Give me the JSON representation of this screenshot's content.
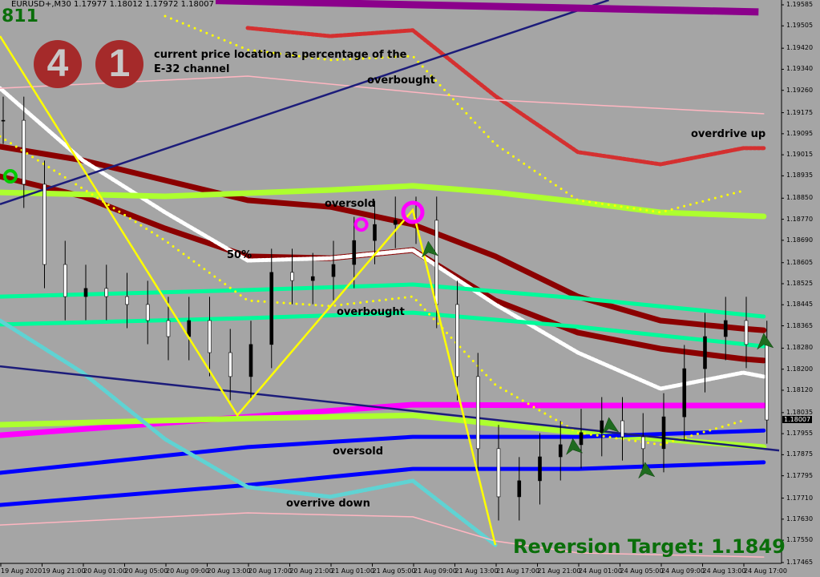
{
  "header": {
    "symbol_line": "EURUSD+,M30  1.17977 1.18012 1.17972 1.18007",
    "counter": "811"
  },
  "info": {
    "digit_1": "4",
    "digit_2": "1",
    "description_1": "current price location as percentage of the",
    "description_2": "E-32 channel"
  },
  "annotations": {
    "overbought_top": "overbought",
    "overdrive_up": "overdrive up",
    "oversold_top": "oversold",
    "fifty_percent": "50%",
    "overbought_mid": "overbought",
    "oversold_bottom": "oversold",
    "overdrive_down": "overrive down"
  },
  "reversion_target": "Reversion Target: 1.1849",
  "colors": {
    "background": "#a5a5a5",
    "zigzag": "#ffff00",
    "trend": "#1c1c7a",
    "dark_red": "#8b0000",
    "lime": "#adff2f",
    "spring": "#00fa9a",
    "magenta": "#ff00ff",
    "blue": "#0000ff",
    "purple": "#8b008b",
    "text_green": "#0a6e0a"
  },
  "chart_data": {
    "type": "candlestick",
    "title": "EURUSD+,M30",
    "ylim": [
      1.17465,
      1.19585
    ],
    "y_ticks": [
      "1.19585",
      "1.19505",
      "1.19420",
      "1.19340",
      "1.19260",
      "1.19175",
      "1.19095",
      "1.19015",
      "1.18935",
      "1.18850",
      "1.18770",
      "1.18690",
      "1.18605",
      "1.18525",
      "1.18445",
      "1.18365",
      "1.18280",
      "1.18200",
      "1.18120",
      "1.18035",
      "1.17955",
      "1.17875",
      "1.17795",
      "1.17710",
      "1.17630",
      "1.17550",
      "1.17465"
    ],
    "x_ticks": [
      "19 Aug 2020",
      "19 Aug 21:00",
      "20 Aug 01:00",
      "20 Aug 05:00",
      "20 Aug 09:00",
      "20 Aug 13:00",
      "20 Aug 17:00",
      "20 Aug 21:00",
      "21 Aug 01:00",
      "21 Aug 05:00",
      "21 Aug 09:00",
      "21 Aug 13:00",
      "21 Aug 17:00",
      "21 Aug 21:00",
      "24 Aug 01:00",
      "24 Aug 05:00",
      "24 Aug 09:00",
      "24 Aug 13:00",
      "24 Aug 17:00"
    ],
    "current_price": "1.18007",
    "closes_2h": [
      1.19146,
      1.18903,
      1.18598,
      1.18476,
      1.18507,
      1.18476,
      1.18446,
      1.18385,
      1.18324,
      1.18385,
      1.18263,
      1.18172,
      1.18294,
      1.18568,
      1.18537,
      1.18552,
      1.18598,
      1.18689,
      1.1875,
      1.18766,
      1.18766,
      1.18446,
      1.18172,
      1.17898,
      1.17715,
      1.17776,
      1.17867,
      1.17913,
      1.17959,
      1.18004,
      1.17943,
      1.17898,
      1.18019,
      1.18202,
      1.18324,
      1.18385,
      1.18294,
      1.18007
    ],
    "zigzag": [
      [
        "19 Aug 17:00",
        1.19466
      ],
      [
        "20 Aug 16:00",
        1.18025
      ],
      [
        "21 Aug 09:00",
        1.18805
      ],
      [
        "21 Aug 17:00",
        1.17532
      ]
    ],
    "trendlines": [
      {
        "points": [
          [
            "19 Aug 17:00",
            1.18827
          ],
          [
            "24 Aug 04:00",
            1.19603
          ]
        ],
        "color": "#1c1c7a"
      },
      {
        "points": [
          [
            "19 Aug 17:00",
            1.18211
          ],
          [
            "24 Aug 20:30",
            1.17891
          ]
        ],
        "color": "#1c1c7a"
      },
      {
        "points": [
          [
            "20 Aug 11:30",
            1.19603
          ],
          [
            "24 Aug 18:30",
            1.19558
          ]
        ],
        "color": "#8b008b"
      }
    ],
    "series": [
      {
        "style": "thick",
        "color": "#8b0000",
        "points": [
          [
            "19 Aug 17:00",
            1.19046
          ],
          [
            "20 Aug 01:00",
            1.18994
          ],
          [
            "20 Aug 09:00",
            1.18918
          ],
          [
            "20 Aug 17:00",
            1.18842
          ],
          [
            "21 Aug 01:00",
            1.18817
          ],
          [
            "21 Aug 09:00",
            1.1875
          ],
          [
            "21 Aug 17:00",
            1.18629
          ],
          [
            "24 Aug 01:00",
            1.18476
          ],
          [
            "24 Aug 09:00",
            1.18385
          ],
          [
            "24 Aug 17:00",
            1.18354
          ],
          [
            "24 Aug 19:00",
            1.18348
          ]
        ]
      },
      {
        "style": "thick",
        "color": "#8b0000",
        "points": [
          [
            "19 Aug 17:00",
            1.18933
          ],
          [
            "20 Aug 01:00",
            1.18857
          ],
          [
            "20 Aug 09:00",
            1.18735
          ],
          [
            "20 Aug 17:00",
            1.18629
          ],
          [
            "21 Aug 01:00",
            1.18622
          ],
          [
            "21 Aug 09:00",
            1.18653
          ],
          [
            "21 Aug 17:00",
            1.18461
          ],
          [
            "24 Aug 01:00",
            1.18339
          ],
          [
            "24 Aug 09:00",
            1.18278
          ],
          [
            "24 Aug 17:00",
            1.18239
          ],
          [
            "24 Aug 19:00",
            1.18233
          ]
        ]
      },
      {
        "style": "crossed",
        "color": "#ffffff",
        "points": [
          [
            "19 Aug 17:00",
            1.19268
          ],
          [
            "20 Aug 01:00",
            1.18994
          ],
          [
            "20 Aug 09:00",
            1.18796
          ],
          [
            "20 Aug 17:00",
            1.18613
          ],
          [
            "21 Aug 01:00",
            1.18622
          ],
          [
            "21 Aug 09:00",
            1.18653
          ],
          [
            "21 Aug 17:00",
            1.18446
          ],
          [
            "24 Aug 01:00",
            1.18263
          ],
          [
            "24 Aug 09:00",
            1.18126
          ],
          [
            "24 Aug 17:00",
            1.18187
          ],
          [
            "24 Aug 19:00",
            1.18172
          ]
        ]
      },
      {
        "style": "thick",
        "color": "#adff2f",
        "points": [
          [
            "19 Aug 17:00",
            1.18872
          ],
          [
            "20 Aug 09:00",
            1.18857
          ],
          [
            "21 Aug 01:00",
            1.18881
          ],
          [
            "21 Aug 09:00",
            1.18897
          ],
          [
            "21 Aug 17:00",
            1.18872
          ],
          [
            "24 Aug 01:00",
            1.18836
          ],
          [
            "24 Aug 09:00",
            1.18796
          ],
          [
            "24 Aug 19:00",
            1.18781
          ]
        ]
      },
      {
        "style": "medium",
        "color": "#00fa9a",
        "points": [
          [
            "19 Aug 17:00",
            1.18476
          ],
          [
            "20 Aug 17:00",
            1.18501
          ],
          [
            "21 Aug 09:00",
            1.18522
          ],
          [
            "24 Aug 01:00",
            1.1847
          ],
          [
            "24 Aug 19:00",
            1.184
          ]
        ]
      },
      {
        "style": "medium",
        "color": "#00fa9a",
        "points": [
          [
            "19 Aug 17:00",
            1.1837
          ],
          [
            "20 Aug 17:00",
            1.18394
          ],
          [
            "21 Aug 09:00",
            1.18415
          ],
          [
            "24 Aug 01:00",
            1.18361
          ],
          [
            "24 Aug 19:00",
            1.18287
          ]
        ]
      },
      {
        "style": "thick",
        "color": "#ff00ff",
        "points": [
          [
            "19 Aug 17:00",
            1.17949
          ],
          [
            "20 Aug 17:00",
            1.18019
          ],
          [
            "21 Aug 09:00",
            1.18065
          ],
          [
            "24 Aug 01:00",
            1.18062
          ],
          [
            "24 Aug 19:00",
            1.18062
          ]
        ]
      },
      {
        "style": "thick",
        "color": "#adff2f",
        "points": [
          [
            "19 Aug 17:00",
            1.17989
          ],
          [
            "20 Aug 17:00",
            1.18013
          ],
          [
            "21 Aug 09:00",
            1.18025
          ],
          [
            "24 Aug 01:00",
            1.17959
          ],
          [
            "24 Aug 19:00",
            1.17904
          ]
        ]
      },
      {
        "style": "medium",
        "color": "#0000ff",
        "points": [
          [
            "19 Aug 17:00",
            1.17806
          ],
          [
            "20 Aug 17:00",
            1.17904
          ],
          [
            "21 Aug 09:00",
            1.17943
          ],
          [
            "24 Aug 01:00",
            1.17943
          ],
          [
            "24 Aug 19:00",
            1.17967
          ]
        ]
      },
      {
        "style": "medium",
        "color": "#0000ff",
        "points": [
          [
            "19 Aug 17:00",
            1.17684
          ],
          [
            "20 Aug 17:00",
            1.1776
          ],
          [
            "21 Aug 09:00",
            1.17821
          ],
          [
            "24 Aug 01:00",
            1.17821
          ],
          [
            "24 Aug 19:00",
            1.17846
          ]
        ]
      },
      {
        "style": "crossed",
        "color": "#5fd3d3",
        "points": [
          [
            "19 Aug 17:00",
            1.18385
          ],
          [
            "20 Aug 01:00",
            1.18187
          ],
          [
            "20 Aug 09:00",
            1.17934
          ],
          [
            "20 Aug 17:00",
            1.17752
          ],
          [
            "21 Aug 01:00",
            1.17715
          ],
          [
            "21 Aug 09:00",
            1.17776
          ],
          [
            "21 Aug 17:00",
            1.17532
          ]
        ]
      },
      {
        "style": "crossed",
        "color": "#d43030",
        "points": [
          [
            "20 Aug 17:00",
            1.19497
          ],
          [
            "21 Aug 01:00",
            1.19466
          ],
          [
            "21 Aug 09:00",
            1.19488
          ],
          [
            "21 Aug 17:00",
            1.19238
          ],
          [
            "24 Aug 01:00",
            1.19025
          ],
          [
            "24 Aug 09:00",
            1.18979
          ],
          [
            "24 Aug 17:00",
            1.1904
          ],
          [
            "24 Aug 19:00",
            1.1904
          ]
        ]
      },
      {
        "style": "thin",
        "color": "#ffb6c1",
        "points": [
          [
            "19 Aug 17:00",
            1.19268
          ],
          [
            "20 Aug 17:00",
            1.19314
          ],
          [
            "21 Aug 17:00",
            1.19223
          ],
          [
            "24 Aug 19:00",
            1.19171
          ]
        ]
      },
      {
        "style": "thin",
        "color": "#ffb6c1",
        "points": [
          [
            "19 Aug 17:00",
            1.17608
          ],
          [
            "20 Aug 17:00",
            1.17654
          ],
          [
            "21 Aug 09:00",
            1.17639
          ],
          [
            "21 Aug 17:00",
            1.17547
          ],
          [
            "24 Aug 01:00",
            1.17502
          ],
          [
            "24 Aug 19:00",
            1.17486
          ]
        ]
      },
      {
        "style": "dotted",
        "color": "#ffff00",
        "points": [
          [
            "20 Aug 09:00",
            1.19542
          ],
          [
            "20 Aug 17:00",
            1.19414
          ],
          [
            "21 Aug 01:00",
            1.19375
          ],
          [
            "21 Aug 09:00",
            1.1939
          ],
          [
            "21 Aug 17:00",
            1.19055
          ],
          [
            "24 Aug 01:00",
            1.18842
          ],
          [
            "24 Aug 09:00",
            1.18796
          ],
          [
            "24 Aug 17:00",
            1.18878
          ]
        ]
      },
      {
        "style": "dotted",
        "color": "#ffff00",
        "points": [
          [
            "19 Aug 17:00",
            1.19085
          ],
          [
            "20 Aug 09:00",
            1.18689
          ],
          [
            "20 Aug 17:00",
            1.18461
          ],
          [
            "21 Aug 01:00",
            1.1844
          ],
          [
            "21 Aug 09:00",
            1.18476
          ],
          [
            "21 Aug 17:00",
            1.18141
          ],
          [
            "24 Aug 01:00",
            1.17959
          ],
          [
            "24 Aug 09:00",
            1.17913
          ],
          [
            "24 Aug 17:00",
            1.18004
          ]
        ]
      }
    ],
    "markers": [
      {
        "type": "circle",
        "color": "#00cc00",
        "at": [
          "19 Aug 18:00",
          1.18933
        ]
      },
      {
        "type": "circle",
        "color": "#ff00ff",
        "at": [
          "21 Aug 04:00",
          1.1875
        ]
      },
      {
        "type": "circle-large",
        "color": "#ff00ff",
        "at": [
          "21 Aug 09:00",
          1.18796
        ]
      },
      {
        "type": "arrow",
        "color": "#1f6b1f",
        "at": [
          "21 Aug 10:30",
          1.1865
        ]
      },
      {
        "type": "arrow",
        "color": "#1f6b1f",
        "at": [
          "24 Aug 00:30",
          1.179
        ]
      },
      {
        "type": "arrow",
        "color": "#1f6b1f",
        "at": [
          "24 Aug 04:00",
          1.1798
        ]
      },
      {
        "type": "arrow",
        "color": "#1f6b1f",
        "at": [
          "24 Aug 07:30",
          1.1781
        ]
      },
      {
        "type": "arrow",
        "color": "#1f6b1f",
        "at": [
          "24 Aug 19:00",
          1.183
        ]
      }
    ]
  }
}
